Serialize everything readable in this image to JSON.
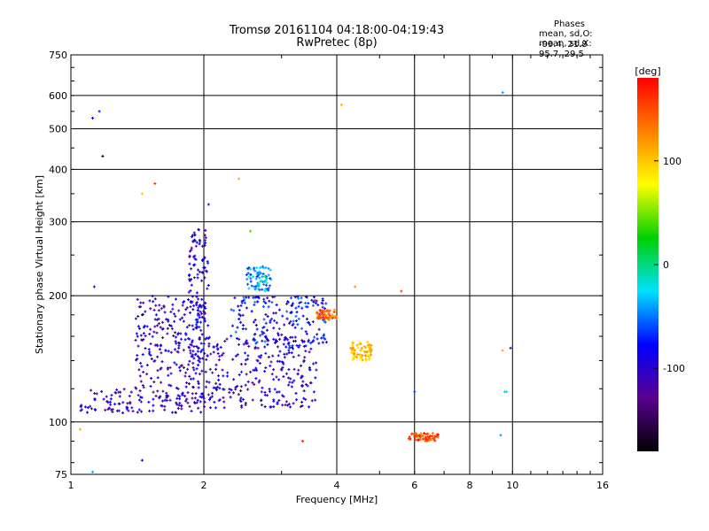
{
  "chart_data": {
    "type": "scatter",
    "title": "Tromsø 20161104 04:18:00-04:19:43",
    "subtitle": "RwPretec (8p)",
    "xlabel": "Frequency [MHz]",
    "ylabel": "Stationary phase Virtual Height [km]",
    "x_scale": "log",
    "y_scale": "log",
    "xlim": [
      1,
      16
    ],
    "ylim": [
      75,
      750
    ],
    "x_ticks": [
      1,
      2,
      4,
      6,
      8,
      10,
      16
    ],
    "y_ticks": [
      75,
      100,
      200,
      300,
      400,
      500,
      600,
      750
    ],
    "grid": true,
    "phases_header": "Phases",
    "phases_line1": "mean, sd,O: -99.4, 21.8",
    "phases_line2": "mean, sd,X:  95.7, 29.5",
    "colorbar": {
      "label": "[deg]",
      "ticks": [
        100,
        0,
        -100
      ],
      "range": [
        -180,
        180
      ],
      "colors": [
        "#000000",
        "#5a0090",
        "#0000ff",
        "#00e0ff",
        "#00d000",
        "#ffff00",
        "#ff8000",
        "#ff0000"
      ]
    },
    "trace_clusters": [
      {
        "name": "o-trace low band",
        "x_range": [
          1.05,
          2.0
        ],
        "y_range": [
          105,
          120
        ],
        "phase": -105
      },
      {
        "name": "o-trace rising",
        "x_range": [
          1.4,
          2.0
        ],
        "y_range": [
          120,
          200
        ],
        "phase": -100
      },
      {
        "name": "o-trace column near 2 MHz",
        "x_range": [
          1.85,
          2.05
        ],
        "y_range": [
          140,
          290
        ],
        "phase": -95
      },
      {
        "name": "o-trace mid",
        "x_range": [
          2.0,
          3.6
        ],
        "y_range": [
          108,
          160
        ],
        "phase": -100
      },
      {
        "name": "o-trace upper",
        "x_range": [
          2.3,
          3.8
        ],
        "y_range": [
          150,
          200
        ],
        "phase": -80
      },
      {
        "name": "x-trace cyan 2.7 MHz",
        "x_range": [
          2.5,
          2.85
        ],
        "y_range": [
          205,
          235
        ],
        "phase": -40
      },
      {
        "name": "x-trace orange",
        "x_range": [
          3.6,
          4.0
        ],
        "y_range": [
          175,
          185
        ],
        "phase": 140
      },
      {
        "name": "yellow patch",
        "x_range": [
          4.3,
          4.8
        ],
        "y_range": [
          140,
          155
        ],
        "phase": 100
      },
      {
        "name": "orange points",
        "x_range": [
          5.8,
          6.8
        ],
        "y_range": [
          90,
          94
        ],
        "phase": 150
      }
    ],
    "isolated_points": [
      {
        "x": 1.12,
        "y": 530,
        "phase": -80
      },
      {
        "x": 1.16,
        "y": 550,
        "phase": -70
      },
      {
        "x": 1.18,
        "y": 430,
        "phase": -170
      },
      {
        "x": 1.45,
        "y": 350,
        "phase": 100
      },
      {
        "x": 1.55,
        "y": 370,
        "phase": 160
      },
      {
        "x": 1.13,
        "y": 210,
        "phase": -110
      },
      {
        "x": 1.45,
        "y": 180,
        "phase": -160
      },
      {
        "x": 2.4,
        "y": 380,
        "phase": 110
      },
      {
        "x": 2.05,
        "y": 330,
        "phase": -110
      },
      {
        "x": 2.55,
        "y": 285,
        "phase": 40
      },
      {
        "x": 4.1,
        "y": 570,
        "phase": 110
      },
      {
        "x": 9.5,
        "y": 610,
        "phase": -40
      },
      {
        "x": 4.4,
        "y": 210,
        "phase": 120
      },
      {
        "x": 5.6,
        "y": 205,
        "phase": 160
      },
      {
        "x": 3.35,
        "y": 90,
        "phase": 170
      },
      {
        "x": 1.05,
        "y": 96,
        "phase": 110
      },
      {
        "x": 1.12,
        "y": 76,
        "phase": -40
      },
      {
        "x": 1.45,
        "y": 81,
        "phase": -80
      },
      {
        "x": 9.6,
        "y": 118,
        "phase": -30
      },
      {
        "x": 9.7,
        "y": 118,
        "phase": -20
      },
      {
        "x": 9.9,
        "y": 150,
        "phase": -110
      },
      {
        "x": 9.5,
        "y": 148,
        "phase": 110
      },
      {
        "x": 9.4,
        "y": 93,
        "phase": -40
      },
      {
        "x": 6.0,
        "y": 118,
        "phase": -60
      },
      {
        "x": 6.1,
        "y": 92,
        "phase": 40
      }
    ]
  }
}
